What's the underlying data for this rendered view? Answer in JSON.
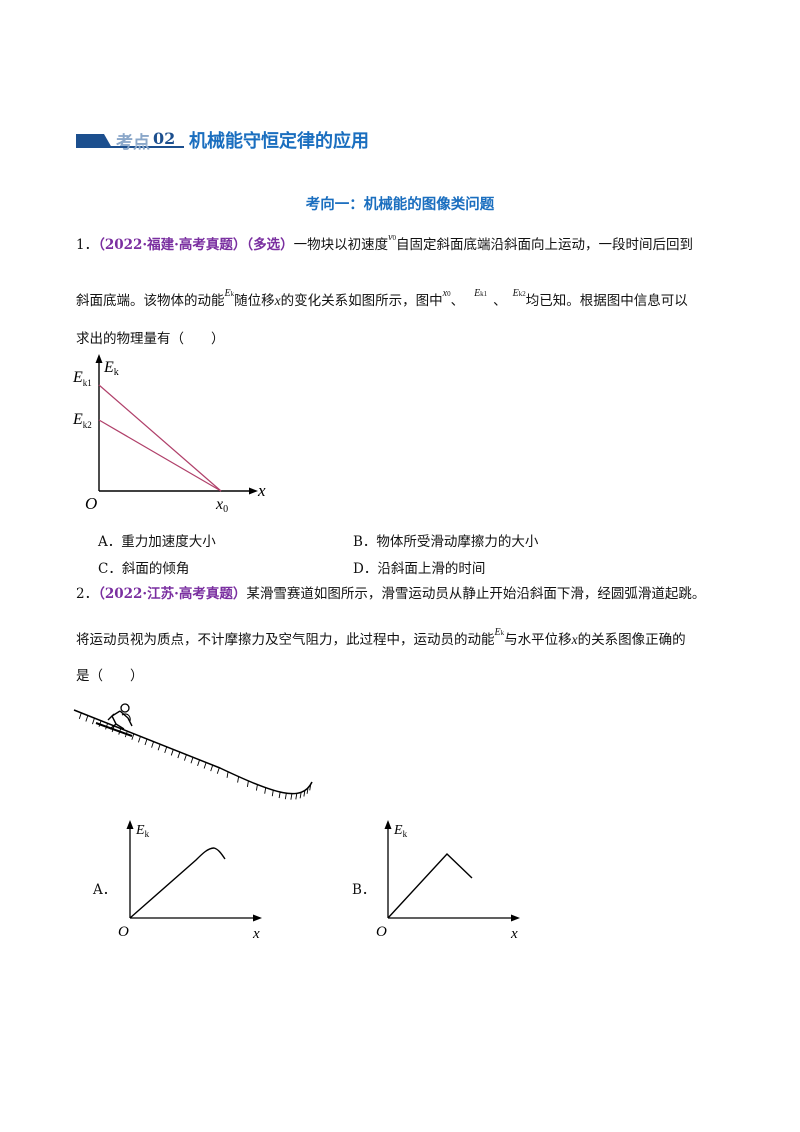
{
  "header": {
    "kaodian": "考点",
    "number": "02",
    "title": "机械能守恒定律的应用",
    "accent": "#1c4f8e"
  },
  "section": {
    "title": "考向一：机械能的图像类问题",
    "color": "#1a6ebf"
  },
  "q1": {
    "num": "1．",
    "tag": "（2022·福建·高考真题）（多选）",
    "t1a": "一物块以初速度",
    "v0": "v",
    "v0sub": "0",
    "t1b": "自固定斜面底端沿斜面向上运动，一段时间后回到",
    "t2a": "斜面底端。该物体的动能",
    "ek": "E",
    "eksub": "k",
    "t2b": "随位移",
    "x": "x",
    "t2c": "的变化关系如图所示，图中",
    "x0": "x",
    "x0sub": "0",
    "sep": "、",
    "ek1sub": "k1",
    "ek2sub": "k2",
    "t2d": "均已知。根据图中信息可以",
    "t3": "求出的物理量有（　　）",
    "graph": {
      "ylabel": "E",
      "ylabel_sub": "k",
      "ek1": "E",
      "ek1_sub": "k1",
      "ek2": "E",
      "ek2_sub": "k2",
      "origin": "O",
      "x0": "x",
      "x0_sub": "0",
      "xlabel": "x",
      "line_color": "#b0406a"
    },
    "options": {
      "A": "A．重力加速度大小",
      "B": "B．物体所受滑动摩擦力的大小",
      "C": "C．斜面的倾角",
      "D": "D．沿斜面上滑的时间"
    }
  },
  "q2": {
    "num": "2．",
    "tag": "（2022·江苏·高考真题）",
    "t1": "某滑雪赛道如图所示，滑雪运动员从静止开始沿斜面下滑，经圆弧滑道起跳。",
    "t2a": "将运动员视为质点，不计摩擦力及空气阻力，此过程中，运动员的动能",
    "ek": "E",
    "eksub": "k",
    "t2b": "与水平位移",
    "x": "x",
    "t2c": "的关系图像正确的",
    "t3": "是（　　）",
    "graphA": {
      "label": "A．",
      "ylabel": "E",
      "ylabel_sub": "k",
      "origin": "O",
      "xlabel": "x"
    },
    "graphB": {
      "label": "B．",
      "ylabel": "E",
      "ylabel_sub": "k",
      "origin": "O",
      "xlabel": "x"
    }
  }
}
